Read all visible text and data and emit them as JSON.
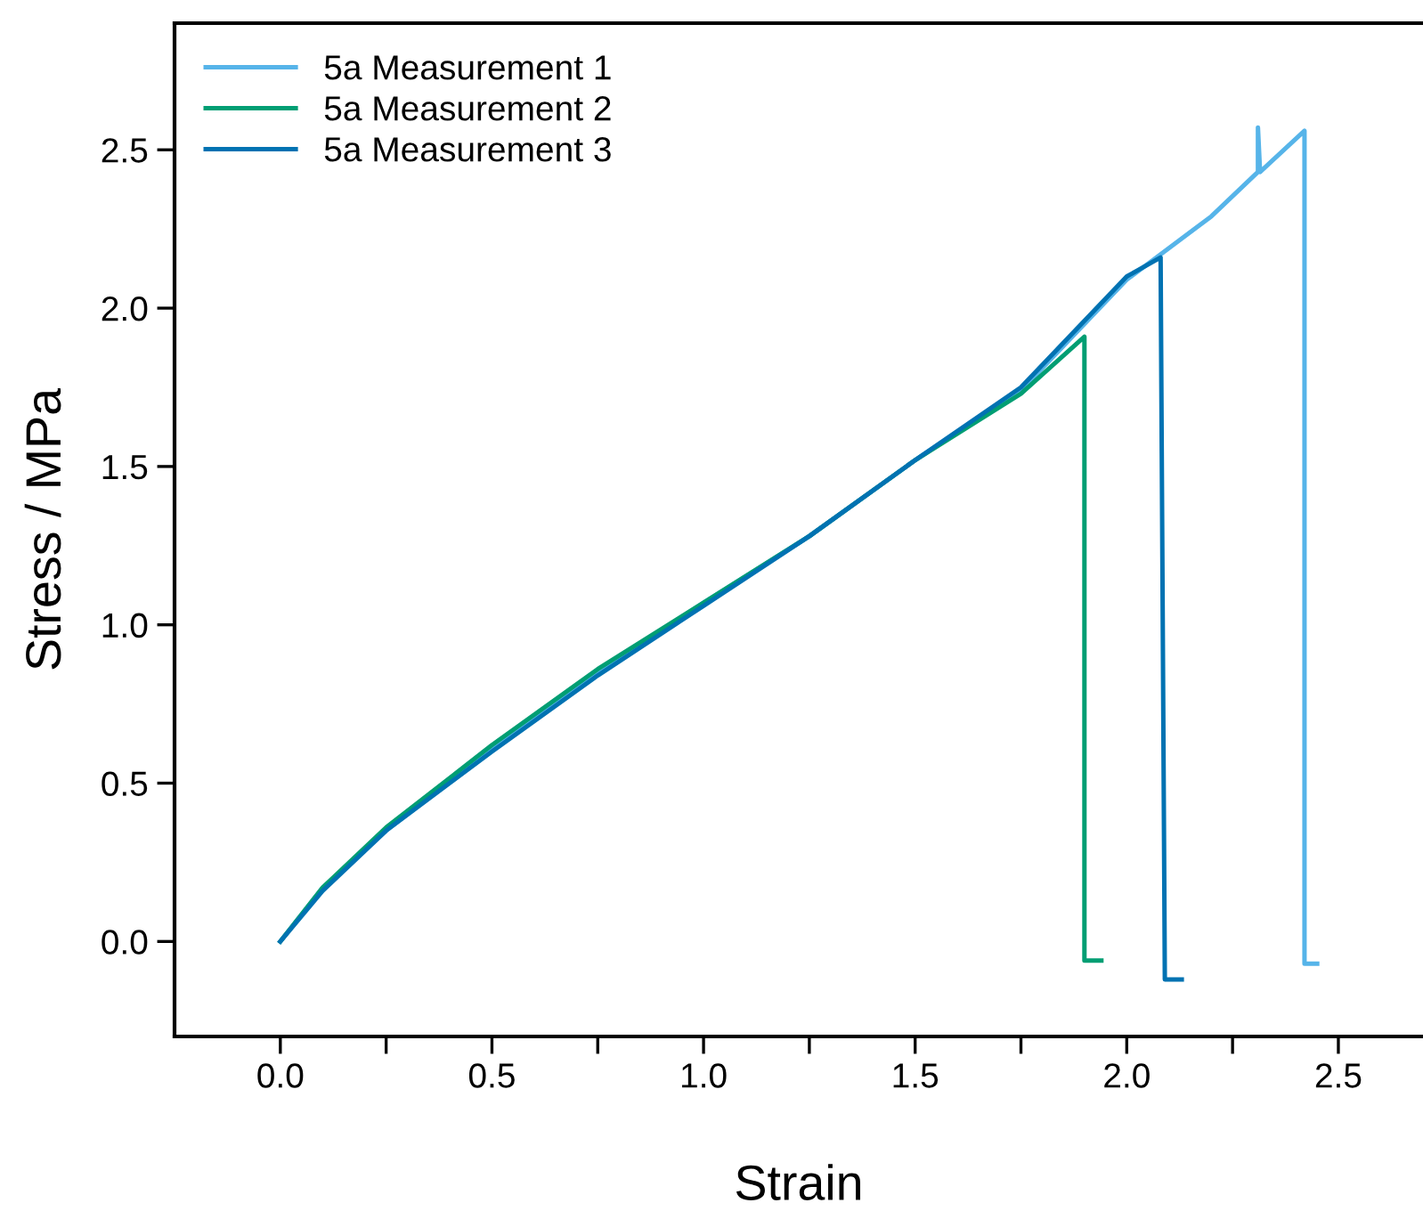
{
  "chart_data": {
    "type": "line",
    "xlabel": "Strain",
    "ylabel": "Stress / MPa",
    "xlim": [
      -0.25,
      2.7
    ],
    "ylim": [
      -0.3,
      2.9
    ],
    "xticks": [
      {
        "value": 0,
        "label": "0.0"
      },
      {
        "value": 0.25,
        "label": null
      },
      0.5,
      {
        "value": 0.75,
        "label": null
      },
      {
        "value": 1,
        "label": "1.0"
      },
      {
        "value": 1.25,
        "label": null
      },
      1.5,
      {
        "value": 1.75,
        "label": null
      },
      {
        "value": 2,
        "label": "2.0"
      },
      {
        "value": 2.25,
        "label": null
      },
      2.5
    ],
    "yticks": [
      {
        "value": 0,
        "label": "0.0"
      },
      0.5,
      {
        "value": 1,
        "label": "1.0"
      },
      1.5,
      {
        "value": 2,
        "label": "2.0"
      },
      2.5
    ],
    "grid": false,
    "legend": "top left",
    "marker": "none",
    "line_style": "solid",
    "series": [
      {
        "name": "5a Measurement 1",
        "color": "#56b4e9",
        "x": [
          0,
          0.1,
          0.25,
          0.5,
          0.75,
          1.0,
          1.25,
          1.5,
          1.75,
          2.0,
          2.2,
          2.31,
          2.31,
          2.315,
          2.42,
          2.42,
          2.45
        ],
        "values": [
          0,
          0.17,
          0.35,
          0.61,
          0.85,
          1.07,
          1.28,
          1.52,
          1.74,
          2.09,
          2.29,
          2.43,
          2.57,
          2.43,
          2.56,
          -0.07,
          -0.07
        ]
      },
      {
        "name": "5a Measurement 2",
        "color": "#009e73",
        "x": [
          0,
          0.1,
          0.25,
          0.5,
          0.75,
          1.0,
          1.25,
          1.5,
          1.75,
          1.9,
          1.9,
          1.94
        ],
        "values": [
          0,
          0.17,
          0.36,
          0.62,
          0.86,
          1.07,
          1.28,
          1.52,
          1.73,
          1.91,
          -0.06,
          -0.06
        ]
      },
      {
        "name": "5a Measurement 3",
        "color": "#0072b2",
        "x": [
          0,
          0.1,
          0.25,
          0.5,
          0.75,
          1.0,
          1.25,
          1.5,
          1.75,
          2.0,
          2.08,
          2.09,
          2.13
        ],
        "values": [
          0,
          0.16,
          0.35,
          0.6,
          0.84,
          1.06,
          1.28,
          1.52,
          1.75,
          2.1,
          2.16,
          -0.12,
          -0.12
        ]
      }
    ]
  }
}
